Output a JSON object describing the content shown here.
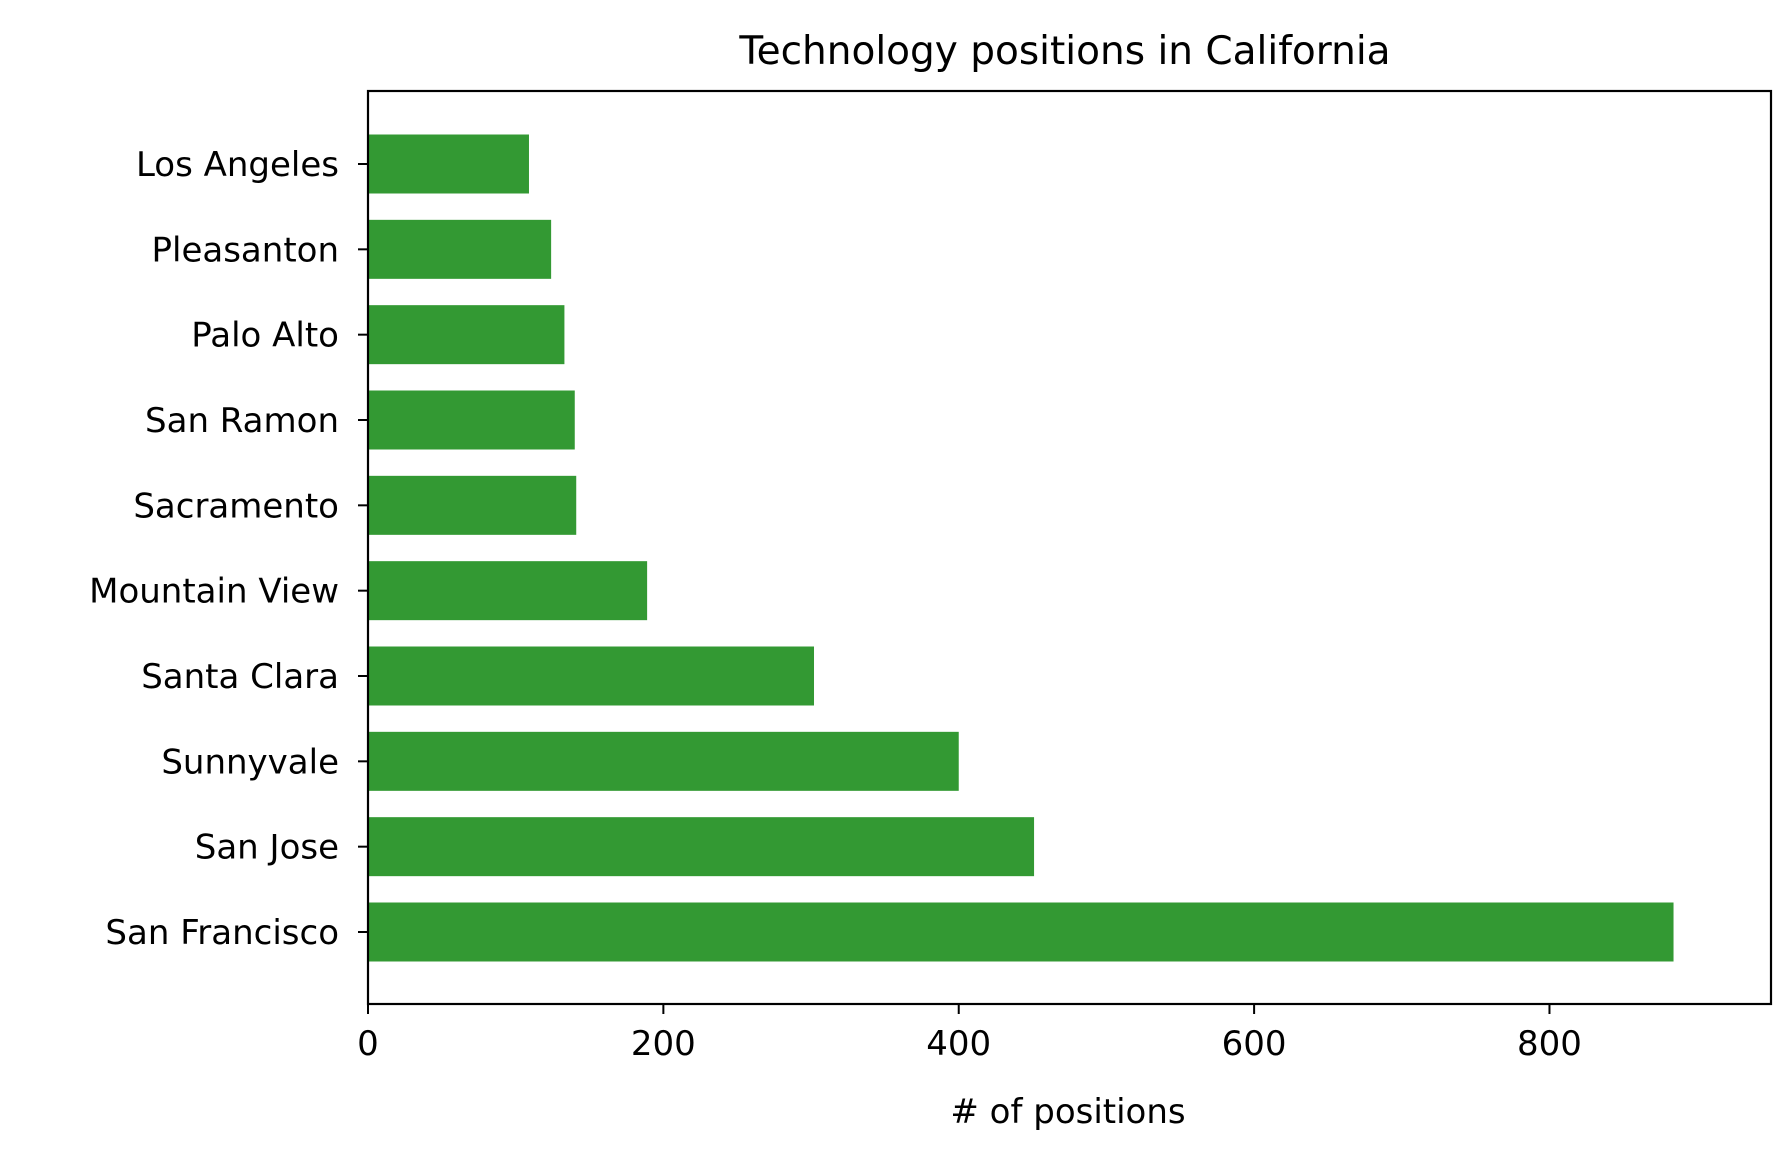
{
  "chart_data": {
    "type": "bar",
    "orientation": "horizontal",
    "title": "Technology positions in California",
    "xlabel": "# of positions",
    "ylabel": "",
    "categories": [
      "San Francisco",
      "San Jose",
      "Sunnyvale",
      "Santa Clara",
      "Mountain View",
      "Sacramento",
      "San Ramon",
      "Palo Alto",
      "Pleasanton",
      "Los Angeles"
    ],
    "values": [
      884,
      451,
      400,
      302,
      189,
      141,
      140,
      133,
      124,
      109
    ],
    "xlim": [
      0,
      950
    ],
    "xticks": [
      0,
      200,
      400,
      600,
      800
    ],
    "grid": false,
    "legend": "none",
    "bar_color": "#339933"
  }
}
